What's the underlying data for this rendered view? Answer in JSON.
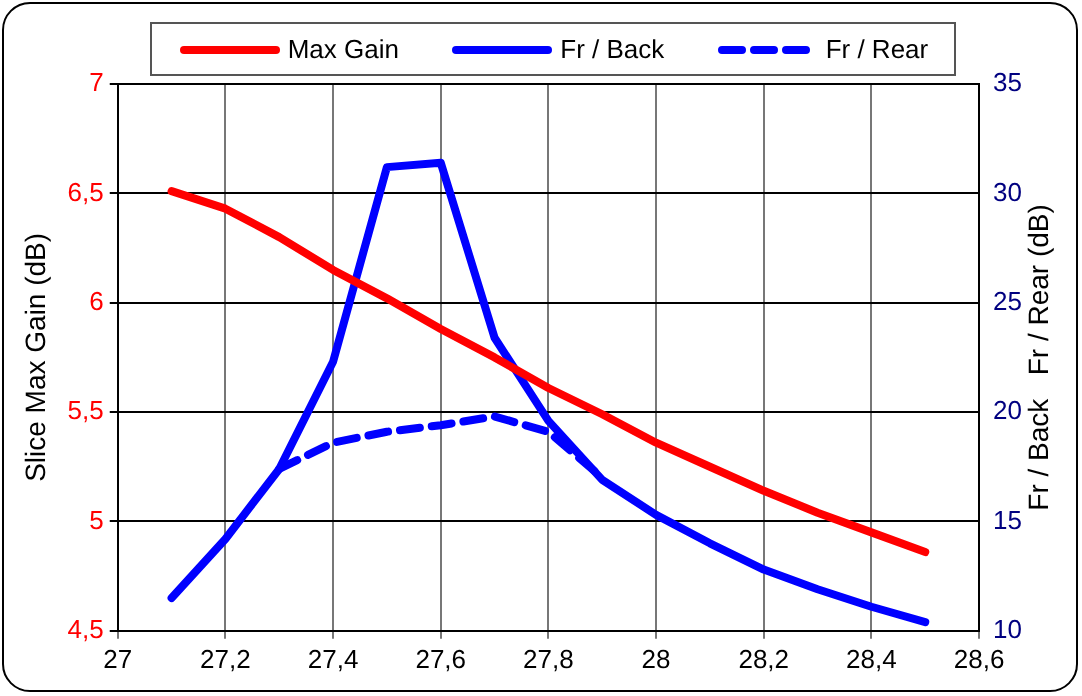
{
  "chart_data": {
    "type": "line",
    "ylabel": "Slice Max Gain (dB)",
    "y2label": "Fr / Back   Fr / Rear (dB)",
    "x": [
      27.1,
      27.2,
      27.3,
      27.4,
      27.5,
      27.6,
      27.7,
      27.8,
      27.9,
      28.0,
      28.1,
      28.2,
      28.3,
      28.4,
      28.5
    ],
    "xlim": [
      27,
      28.6
    ],
    "xticks": [
      27,
      {
        "value": 27.2,
        "label": "27,2"
      },
      {
        "value": 27.4,
        "label": "27,4"
      },
      {
        "value": 27.6,
        "label": "27,6"
      },
      {
        "value": 27.8,
        "label": "27,8"
      },
      28,
      {
        "value": 28.2,
        "label": "28,2"
      },
      {
        "value": 28.4,
        "label": "28,4"
      },
      {
        "value": 28.6,
        "label": "28,6"
      }
    ],
    "ylim": [
      4.5,
      7
    ],
    "yticks": [
      {
        "value": 4.5,
        "label": "4,5"
      },
      5,
      {
        "value": 5.5,
        "label": "5,5"
      },
      6,
      {
        "value": 6.5,
        "label": "6,5"
      },
      7
    ],
    "y2lim": [
      10,
      35
    ],
    "y2ticks": [
      10,
      15,
      20,
      25,
      30,
      35
    ],
    "grid": true,
    "legend": "top",
    "marker": "none",
    "series": [
      {
        "name": "Max Gain",
        "color": "#ff0000",
        "values": [
          6.51,
          6.43,
          6.3,
          6.15,
          6.02,
          5.88,
          5.75,
          5.61,
          5.49,
          5.36,
          5.25,
          5.14,
          5.04,
          4.95,
          4.86
        ]
      },
      {
        "name": "Fr / Back",
        "color": "#0000ff",
        "axis": "y2",
        "values": [
          11.5,
          14.2,
          17.4,
          22.3,
          31.2,
          31.4,
          23.4,
          19.6,
          16.9,
          15.3,
          14.0,
          12.8,
          11.9,
          11.1,
          10.4
        ]
      },
      {
        "name": "Fr / Rear",
        "color": "#0000ff",
        "axis": "y2",
        "line_style": "dashed",
        "values": [
          null,
          null,
          17.4,
          18.6,
          19.1,
          19.4,
          19.8,
          19.1,
          17.0,
          null,
          null,
          null,
          null,
          null,
          null
        ]
      }
    ]
  }
}
